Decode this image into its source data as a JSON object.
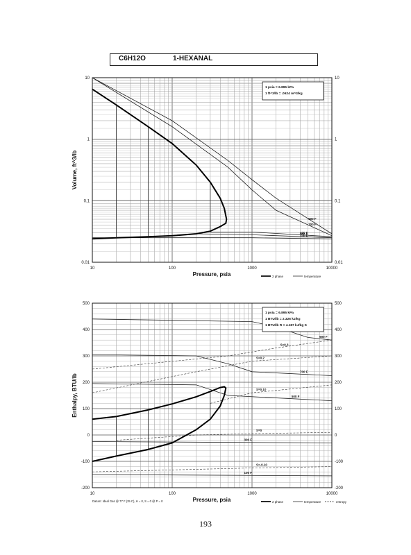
{
  "header": {
    "formula": "C6H12O",
    "compound": "1-HEXANAL"
  },
  "page_number": "193",
  "chart_data": [
    {
      "type": "line",
      "xscale": "log",
      "yscale": "log",
      "xlim": [
        10,
        10000
      ],
      "ylim": [
        0.01,
        10
      ],
      "xticks": [
        "10",
        "100",
        "1000",
        "10000"
      ],
      "yticks": [
        "0.01",
        "0.1",
        "1",
        "10"
      ],
      "yticks_right": [
        "0.01",
        "0.1",
        "1",
        "10"
      ],
      "xlabel": "Pressure, psia",
      "ylabel": "Volume, ft^3/lb",
      "grid": true,
      "notes": [
        "1 psia = 6.895 kPa",
        "1 ft^3/lb = .0624 m^3/kg"
      ],
      "legend": [
        {
          "label": "2 phase",
          "style": "thick"
        },
        {
          "label": "temperature",
          "style": "thin"
        }
      ],
      "two_phase": {
        "x": [
          10,
          20,
          50,
          100,
          200,
          300,
          400,
          450,
          480,
          470,
          400,
          300,
          200,
          100,
          50,
          20,
          10
        ],
        "y": [
          6.5,
          3.6,
          1.6,
          0.85,
          0.38,
          0.2,
          0.11,
          0.075,
          0.05,
          0.043,
          0.038,
          0.032,
          0.029,
          0.027,
          0.026,
          0.025,
          0.024
        ]
      },
      "isotherms": [
        {
          "label": "900 F",
          "x": [
            10,
            100,
            500,
            1000,
            2000,
            10000
          ],
          "y": [
            10,
            2,
            0.45,
            0.22,
            0.11,
            0.029
          ]
        },
        {
          "label": "700 F",
          "x": [
            10,
            100,
            500,
            1000,
            2000,
            10000
          ],
          "y": [
            10,
            1.6,
            0.35,
            0.15,
            0.07,
            0.027
          ]
        },
        {
          "label": "400 F",
          "x": [
            300,
            1000,
            10000
          ],
          "y": [
            0.031,
            0.031,
            0.026
          ]
        },
        {
          "label": "300 F",
          "x": [
            200,
            1000,
            10000
          ],
          "y": [
            0.029,
            0.028,
            0.025
          ]
        },
        {
          "label": "100 F",
          "x": [
            10,
            1000,
            10000
          ],
          "y": [
            0.025,
            0.025,
            0.024
          ]
        }
      ]
    },
    {
      "type": "line",
      "xscale": "log",
      "yscale": "linear",
      "xlim": [
        10,
        10000
      ],
      "ylim": [
        -200,
        500
      ],
      "xticks": [
        "10",
        "100",
        "1000",
        "10000"
      ],
      "yticks": [
        "-200",
        "-100",
        "0",
        "100",
        "200",
        "300",
        "400",
        "500"
      ],
      "yticks_right": [
        "-200",
        "-100",
        "0",
        "100",
        "200",
        "300",
        "400",
        "500"
      ],
      "xlabel": "Pressure, psia",
      "ylabel": "Enthalpy, BTU/lb",
      "grid": true,
      "notes": [
        "1 psia = 6.895 kPa",
        "1 BTU/lb = 2.326 kJ/kg",
        "1 BTU/lb R = 4.187 kJ/kg K"
      ],
      "footnote": "Datum: Ideal Gas @ 77 F (25 C), H = 0, S = 0 @ P = 0",
      "legend": [
        {
          "label": "2 phase",
          "style": "thick"
        },
        {
          "label": "temperature",
          "style": "thin"
        },
        {
          "label": "entropy",
          "style": "dashed"
        }
      ],
      "two_phase": {
        "x": [
          10,
          20,
          50,
          100,
          200,
          300,
          400,
          450,
          470,
          450,
          400,
          300,
          200,
          100,
          50,
          20,
          10
        ],
        "y": [
          60,
          70,
          95,
          118,
          145,
          165,
          180,
          183,
          178,
          150,
          110,
          60,
          20,
          -30,
          -55,
          -80,
          -100
        ]
      },
      "isotherms": [
        {
          "label": "900 F",
          "x": [
            10,
            1000,
            2000,
            5000,
            10000
          ],
          "y": [
            440,
            430,
            410,
            370,
            360
          ]
        },
        {
          "label": "700 F",
          "x": [
            10,
            200,
            500,
            1000,
            10000
          ],
          "y": [
            305,
            300,
            270,
            240,
            225
          ]
        },
        {
          "label": "500 F",
          "x": [
            10,
            200,
            500,
            10000
          ],
          "y": [
            195,
            190,
            150,
            130
          ]
        },
        {
          "label": "300 F",
          "x": [
            10,
            10000
          ],
          "y": [
            -25,
            -30
          ]
        },
        {
          "label": "100 F",
          "x": [
            10,
            10000
          ],
          "y": [
            -150,
            -155
          ]
        }
      ],
      "entropy_lines": [
        {
          "label": "S=0.3",
          "x": [
            10,
            500,
            2000,
            10000
          ],
          "y": [
            250,
            300,
            330,
            360
          ]
        },
        {
          "label": "S=0.2",
          "x": [
            10,
            200,
            1000,
            10000
          ],
          "y": [
            160,
            240,
            280,
            300
          ]
        },
        {
          "label": "S=0.10",
          "x": [
            300,
            1000,
            10000
          ],
          "y": [
            120,
            160,
            190
          ]
        },
        {
          "label": "S=0",
          "x": [
            20,
            200,
            1000,
            10000
          ],
          "y": [
            -20,
            0,
            5,
            10
          ]
        },
        {
          "label": "S=-0.10",
          "x": [
            10,
            1000,
            10000
          ],
          "y": [
            -140,
            -125,
            -120
          ]
        }
      ]
    }
  ]
}
